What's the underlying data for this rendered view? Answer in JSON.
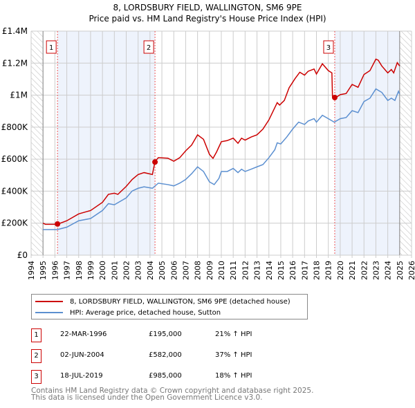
{
  "title": "8, LORDSBURY FIELD, WALLINGTON, SM6 9PE",
  "subtitle": "Price paid vs. HM Land Registry's House Price Index (HPI)",
  "colors": {
    "property": "#cc0000",
    "hpi": "#5b8fd0",
    "band": "#eef3fc"
  },
  "chart_data": {
    "type": "line",
    "xlim": [
      1994,
      2026
    ],
    "ylim": [
      0,
      1400000
    ],
    "yticks": [
      0,
      200000,
      400000,
      600000,
      800000,
      1000000,
      1200000,
      1400000
    ],
    "ytick_labels": [
      "£0",
      "£200K",
      "£400K",
      "£600K",
      "£800K",
      "£1M",
      "£1.2M",
      "£1.4M"
    ],
    "xtick_labels": [
      "1994",
      "1995",
      "1996",
      "1997",
      "1998",
      "1999",
      "2000",
      "2001",
      "2002",
      "2003",
      "2004",
      "2005",
      "2006",
      "2007",
      "2008",
      "2009",
      "2010",
      "2011",
      "2012",
      "2013",
      "2014",
      "2015",
      "2016",
      "2017",
      "2018",
      "2019",
      "2020",
      "2021",
      "2022",
      "2023",
      "2024",
      "2025",
      "2026"
    ],
    "grid": true,
    "data_range": [
      1995,
      2025
    ],
    "bands": [
      [
        1996.22,
        2004.42
      ],
      [
        2019.54,
        2025
      ]
    ],
    "series": [
      {
        "name": "8, LORDSBURY FIELD, WALLINGTON, SM6 9PE (detached house)",
        "points": [
          [
            1995,
            200000
          ],
          [
            1995.2,
            193000
          ],
          [
            1996.2,
            193000
          ],
          [
            1997,
            215000
          ],
          [
            1998,
            258000
          ],
          [
            1999,
            279000
          ],
          [
            2000,
            330000
          ],
          [
            2000.5,
            380000
          ],
          [
            2001,
            387000
          ],
          [
            2001.3,
            380000
          ],
          [
            2002,
            430000
          ],
          [
            2002.5,
            473000
          ],
          [
            2003,
            504000
          ],
          [
            2003.5,
            516000
          ],
          [
            2004.2,
            504000
          ],
          [
            2004.42,
            585000
          ],
          [
            2004.7,
            609000
          ],
          [
            2005.5,
            606000
          ],
          [
            2006,
            587000
          ],
          [
            2006.5,
            609000
          ],
          [
            2007,
            652000
          ],
          [
            2007.5,
            688000
          ],
          [
            2008,
            752000
          ],
          [
            2008.5,
            724000
          ],
          [
            2009,
            630000
          ],
          [
            2009.3,
            605000
          ],
          [
            2009.6,
            645000
          ],
          [
            2010,
            709000
          ],
          [
            2010.5,
            716000
          ],
          [
            2011,
            731000
          ],
          [
            2011.4,
            699000
          ],
          [
            2011.7,
            731000
          ],
          [
            2012,
            719000
          ],
          [
            2012.5,
            738000
          ],
          [
            2013,
            752000
          ],
          [
            2013.5,
            788000
          ],
          [
            2014,
            845000
          ],
          [
            2014.7,
            953000
          ],
          [
            2014.9,
            938000
          ],
          [
            2015.3,
            967000
          ],
          [
            2015.7,
            1046000
          ],
          [
            2016.2,
            1103000
          ],
          [
            2016.6,
            1143000
          ],
          [
            2017,
            1125000
          ],
          [
            2017.3,
            1149000
          ],
          [
            2017.8,
            1163000
          ],
          [
            2018,
            1132000
          ],
          [
            2018.5,
            1196000
          ],
          [
            2019,
            1153000
          ],
          [
            2019.3,
            1139000
          ],
          [
            2019.35,
            988000
          ],
          [
            2019.55,
            981000
          ],
          [
            2020,
            1003000
          ],
          [
            2020.5,
            1010000
          ],
          [
            2021,
            1067000
          ],
          [
            2021.5,
            1049000
          ],
          [
            2022,
            1129000
          ],
          [
            2022.5,
            1153000
          ],
          [
            2023,
            1225000
          ],
          [
            2023.2,
            1218000
          ],
          [
            2023.5,
            1182000
          ],
          [
            2024,
            1139000
          ],
          [
            2024.3,
            1160000
          ],
          [
            2024.5,
            1139000
          ],
          [
            2024.8,
            1203000
          ],
          [
            2025,
            1182000
          ]
        ]
      },
      {
        "name": "HPI: Average price, detached house, Sutton",
        "points": [
          [
            1995,
            160000
          ],
          [
            1996.2,
            160000
          ],
          [
            1997,
            175000
          ],
          [
            1998,
            215000
          ],
          [
            1999,
            229000
          ],
          [
            2000,
            279000
          ],
          [
            2000.5,
            322000
          ],
          [
            2001,
            315000
          ],
          [
            2002,
            358000
          ],
          [
            2002.5,
            401000
          ],
          [
            2003,
            418000
          ],
          [
            2003.5,
            427000
          ],
          [
            2004.2,
            418000
          ],
          [
            2004.7,
            450000
          ],
          [
            2005.5,
            441000
          ],
          [
            2006,
            433000
          ],
          [
            2006.5,
            450000
          ],
          [
            2007,
            473000
          ],
          [
            2007.5,
            509000
          ],
          [
            2008,
            552000
          ],
          [
            2008.5,
            523000
          ],
          [
            2009,
            458000
          ],
          [
            2009.4,
            441000
          ],
          [
            2009.8,
            480000
          ],
          [
            2010,
            523000
          ],
          [
            2010.5,
            523000
          ],
          [
            2011,
            542000
          ],
          [
            2011.4,
            516000
          ],
          [
            2011.7,
            537000
          ],
          [
            2012,
            523000
          ],
          [
            2012.5,
            537000
          ],
          [
            2013,
            552000
          ],
          [
            2013.5,
            566000
          ],
          [
            2014,
            609000
          ],
          [
            2014.5,
            659000
          ],
          [
            2014.7,
            702000
          ],
          [
            2015,
            695000
          ],
          [
            2015.5,
            738000
          ],
          [
            2016,
            788000
          ],
          [
            2016.5,
            831000
          ],
          [
            2017,
            817000
          ],
          [
            2017.3,
            838000
          ],
          [
            2017.8,
            853000
          ],
          [
            2018,
            831000
          ],
          [
            2018.5,
            874000
          ],
          [
            2019,
            853000
          ],
          [
            2019.5,
            831000
          ],
          [
            2020,
            853000
          ],
          [
            2020.5,
            860000
          ],
          [
            2021,
            903000
          ],
          [
            2021.5,
            891000
          ],
          [
            2022,
            960000
          ],
          [
            2022.5,
            981000
          ],
          [
            2023,
            1039000
          ],
          [
            2023.5,
            1017000
          ],
          [
            2024,
            967000
          ],
          [
            2024.3,
            981000
          ],
          [
            2024.6,
            967000
          ],
          [
            2024.9,
            1024000
          ],
          [
            2025,
            1006000
          ]
        ]
      }
    ],
    "sales": [
      {
        "label": "1",
        "x": 1996.22,
        "y": 195000
      },
      {
        "label": "2",
        "x": 2004.42,
        "y": 582000
      },
      {
        "label": "3",
        "x": 2019.54,
        "y": 985000
      }
    ]
  },
  "legend": {
    "property": "8, LORDSBURY FIELD, WALLINGTON, SM6 9PE (detached house)",
    "hpi": "HPI: Average price, detached house, Sutton"
  },
  "transactions": [
    {
      "num": "1",
      "date": "22-MAR-1996",
      "price": "£195,000",
      "hpi": "21% ↑ HPI"
    },
    {
      "num": "2",
      "date": "02-JUN-2004",
      "price": "£582,000",
      "hpi": "37% ↑ HPI"
    },
    {
      "num": "3",
      "date": "18-JUL-2019",
      "price": "£985,000",
      "hpi": "18% ↑ HPI"
    }
  ],
  "footer": {
    "line1": "Contains HM Land Registry data © Crown copyright and database right 2025.",
    "line2": "This data is licensed under the Open Government Licence v3.0."
  }
}
